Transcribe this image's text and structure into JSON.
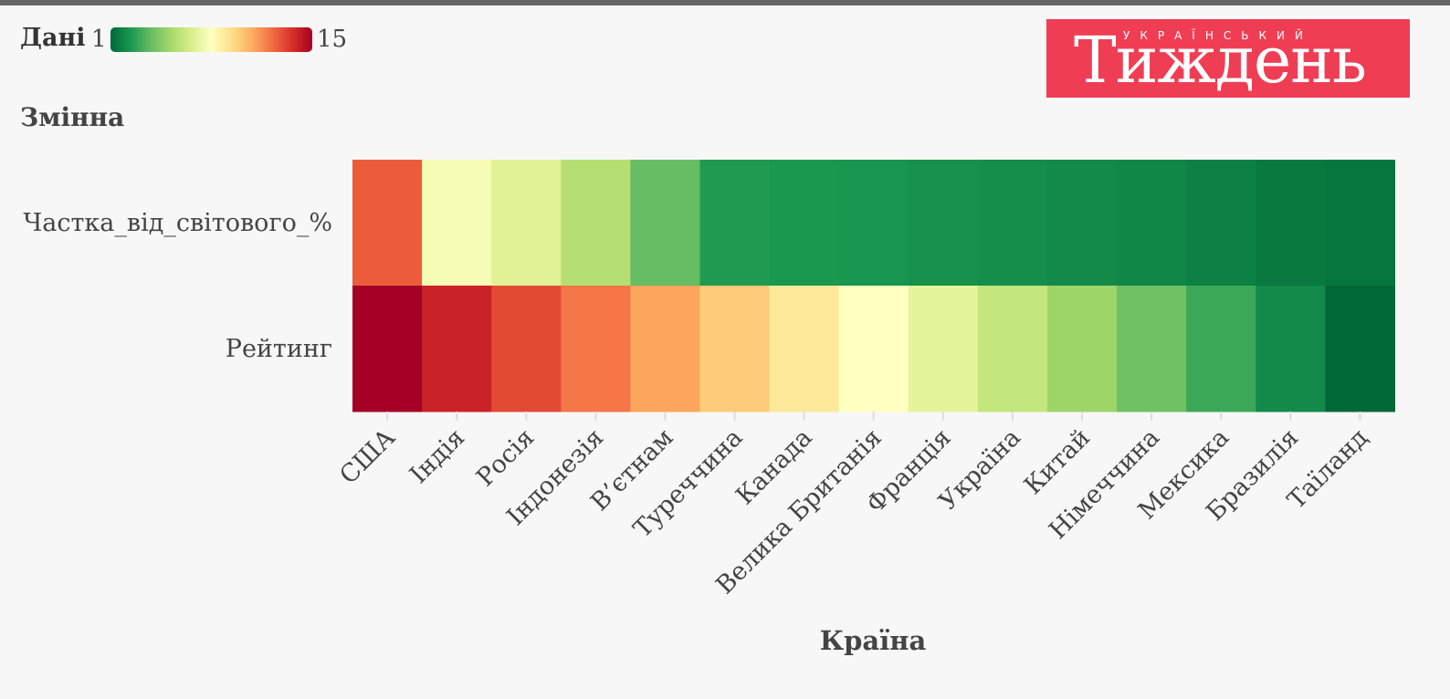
{
  "legend": {
    "title": "Дані",
    "min_label": "1",
    "max_label": "15"
  },
  "logo": {
    "small_text": "УКРАЇНСЬКИЙ",
    "big_text": "Тиждень"
  },
  "chart_data": {
    "type": "heatmap",
    "title": "",
    "xlabel": "Країна",
    "ylabel": "Змінна",
    "categories": [
      "США",
      "Індія",
      "Росія",
      "Індонезія",
      "В’єтнам",
      "Туреччина",
      "Канада",
      "Велика Британія",
      "Франція",
      "Україна",
      "Китай",
      "Німеччина",
      "Мексика",
      "Бразилія",
      "Таїланд"
    ],
    "rows": [
      "Частка_від_світового_%",
      "Рейтинг"
    ],
    "values": [
      [
        12.6,
        7.7,
        6.9,
        5.6,
        3.8,
        2.5,
        2.4,
        2.3,
        2.2,
        2.1,
        2.0,
        1.9,
        1.7,
        1.5,
        1.4
      ],
      [
        15,
        14,
        13,
        12,
        11,
        10,
        9,
        8,
        7,
        6,
        5,
        4,
        3,
        2,
        1
      ]
    ],
    "color_scale": {
      "min": 1,
      "max": 15,
      "palette": "RdYlGn reversed"
    },
    "legend_position": "top-left"
  }
}
